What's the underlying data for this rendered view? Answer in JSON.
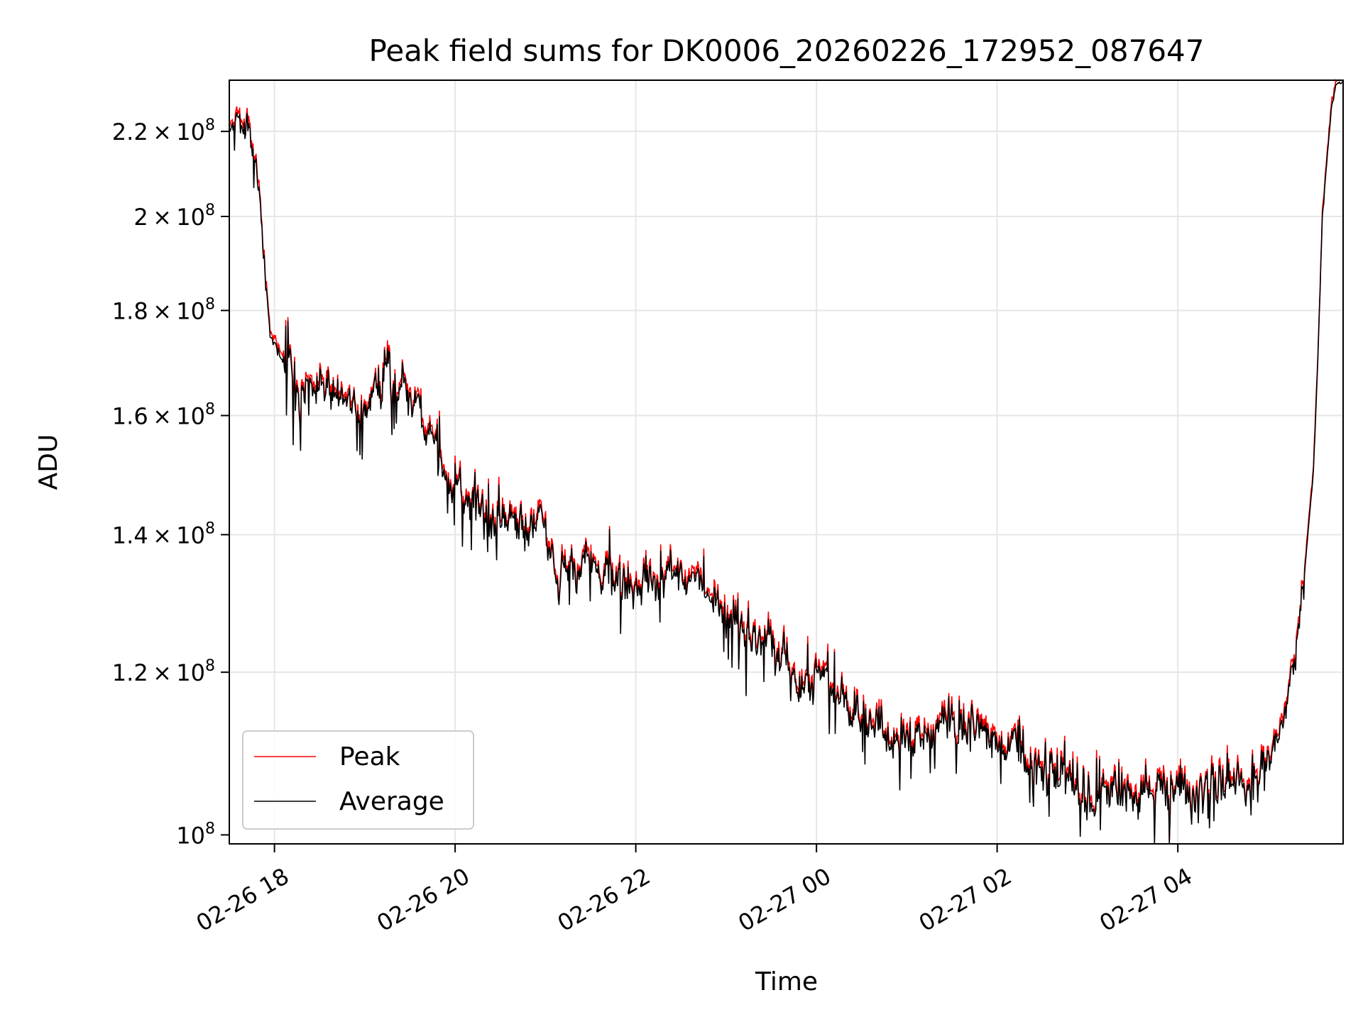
{
  "chart_data": {
    "type": "line",
    "title": "Peak field sums for DK0006_20260226_172952_087647",
    "xlabel": "Time",
    "ylabel": "ADU",
    "y_scale": "log",
    "grid": true,
    "legend_position": "lower-left",
    "x_range_hours": [
      17.5,
      29.83
    ],
    "ylim": [
      99000000,
      233000000
    ],
    "x_ticks": [
      {
        "hour": 18,
        "label": "02-26 18"
      },
      {
        "hour": 20,
        "label": "02-26 20"
      },
      {
        "hour": 22,
        "label": "02-26 22"
      },
      {
        "hour": 24,
        "label": "02-27 00"
      },
      {
        "hour": 26,
        "label": "02-27 02"
      },
      {
        "hour": 28,
        "label": "02-27 04"
      }
    ],
    "y_ticks": [
      {
        "value": 220000000,
        "mantissa": "2.2",
        "exp": "8"
      },
      {
        "value": 200000000,
        "mantissa": "2",
        "exp": "8"
      },
      {
        "value": 180000000,
        "mantissa": "1.8",
        "exp": "8"
      },
      {
        "value": 160000000,
        "mantissa": "1.6",
        "exp": "8"
      },
      {
        "value": 140000000,
        "mantissa": "1.4",
        "exp": "8"
      },
      {
        "value": 120000000,
        "mantissa": "1.2",
        "exp": "8"
      },
      {
        "value": 100000000,
        "mantissa": "",
        "exp": "8",
        "base_only": true
      }
    ],
    "series": [
      {
        "name": "Peak",
        "color": "#ff0000"
      },
      {
        "name": "Average",
        "color": "#000000"
      }
    ],
    "trend_hours": [
      17.5,
      17.7,
      17.8,
      17.95,
      18.1,
      18.3,
      18.5,
      18.8,
      19.0,
      19.3,
      19.5,
      19.7,
      19.9,
      20.0,
      20.3,
      20.5,
      20.8,
      21.0,
      21.1,
      21.2,
      21.5,
      21.8,
      22.0,
      22.3,
      22.5,
      22.8,
      23.0,
      23.3,
      23.5,
      23.8,
      24.0,
      24.2,
      24.5,
      24.7,
      24.8,
      25.0,
      25.3,
      25.5,
      25.8,
      26.0,
      26.2,
      26.5,
      26.8,
      27.0,
      27.3,
      27.5,
      27.8,
      28.0,
      28.3,
      28.6,
      28.9,
      29.1,
      29.2,
      29.3,
      29.4,
      29.5,
      29.55,
      29.6,
      29.7,
      29.75,
      29.83
    ],
    "trend_values": [
      221000000,
      221000000,
      213000000,
      175000000,
      170000000,
      163000000,
      167000000,
      162000000,
      162000000,
      166000000,
      164000000,
      157000000,
      149000000,
      147000000,
      142000000,
      141000000,
      142000000,
      141000000,
      134000000,
      135000000,
      136000000,
      134000000,
      132000000,
      134000000,
      134000000,
      131000000,
      128000000,
      125000000,
      122000000,
      119000000,
      118000000,
      118000000,
      115000000,
      113000000,
      112000000,
      112000000,
      113000000,
      114000000,
      113000000,
      111000000,
      109000000,
      106000000,
      107000000,
      105000000,
      104000000,
      104000000,
      104000000,
      105000000,
      105000000,
      106000000,
      107000000,
      111000000,
      116000000,
      122000000,
      134000000,
      150000000,
      170000000,
      200000000,
      226000000,
      232000000,
      233000000
    ]
  }
}
